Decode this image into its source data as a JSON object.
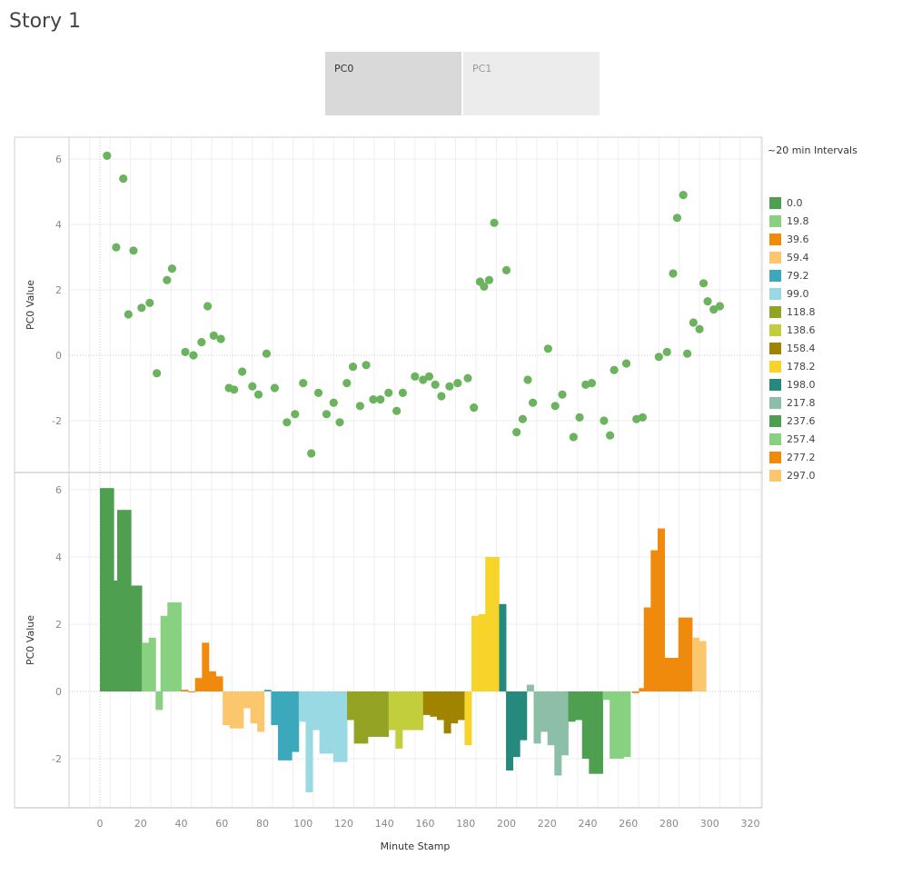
{
  "story": {
    "title": "Story 1"
  },
  "tabs": [
    {
      "label": "PC0",
      "active": true
    },
    {
      "label": "PC1",
      "active": false
    }
  ],
  "legend": {
    "title": "~20 min Intervals",
    "items": [
      {
        "label": "0.0",
        "color": "#4e9f50"
      },
      {
        "label": "19.8",
        "color": "#87d180"
      },
      {
        "label": "39.6",
        "color": "#ef8a0c"
      },
      {
        "label": "59.4",
        "color": "#fcc66d"
      },
      {
        "label": "79.2",
        "color": "#3ca8bc"
      },
      {
        "label": "99.0",
        "color": "#98d9e4"
      },
      {
        "label": "118.8",
        "color": "#94a323"
      },
      {
        "label": "138.6",
        "color": "#c3ce3d"
      },
      {
        "label": "158.4",
        "color": "#a08400"
      },
      {
        "label": "178.2",
        "color": "#f7d42a"
      },
      {
        "label": "198.0",
        "color": "#26897e"
      },
      {
        "label": "217.8",
        "color": "#8dbfa8"
      },
      {
        "label": "237.6",
        "color": "#4e9f50"
      },
      {
        "label": "257.4",
        "color": "#87d180"
      },
      {
        "label": "277.2",
        "color": "#ef8a0c"
      },
      {
        "label": "297.0",
        "color": "#fcc66d"
      }
    ]
  },
  "chart_data": [
    {
      "type": "scatter",
      "xlabel": "Minute Stamp",
      "ylabel": "PC0 Value",
      "xlim": [
        -15,
        323
      ],
      "ylim": [
        -3.5,
        6.6
      ],
      "xticks": [
        0,
        20,
        40,
        60,
        80,
        100,
        120,
        140,
        160,
        180,
        200,
        220,
        240,
        260,
        280,
        300,
        320
      ],
      "yticks": [
        -2,
        0,
        2,
        4,
        6
      ],
      "grid": true,
      "marker_color": "#6bb35e",
      "points": [
        [
          3.5,
          6.1
        ],
        [
          8,
          3.3
        ],
        [
          11.5,
          5.4
        ],
        [
          14,
          1.25
        ],
        [
          16.5,
          3.2
        ],
        [
          20.5,
          1.45
        ],
        [
          24.5,
          1.6
        ],
        [
          28,
          -0.55
        ],
        [
          33,
          2.3
        ],
        [
          35.5,
          2.65
        ],
        [
          42,
          0.1
        ],
        [
          46,
          0.0
        ],
        [
          50,
          0.4
        ],
        [
          53,
          1.5
        ],
        [
          56,
          0.6
        ],
        [
          59.5,
          0.5
        ],
        [
          63.5,
          -1.0
        ],
        [
          66,
          -1.05
        ],
        [
          70,
          -0.5
        ],
        [
          75,
          -0.95
        ],
        [
          78,
          -1.2
        ],
        [
          82,
          0.05
        ],
        [
          86,
          -1.0
        ],
        [
          92,
          -2.05
        ],
        [
          96,
          -1.8
        ],
        [
          100,
          -0.85
        ],
        [
          104,
          -3.0
        ],
        [
          107.5,
          -1.15
        ],
        [
          111.5,
          -1.8
        ],
        [
          115,
          -1.45
        ],
        [
          118,
          -2.05
        ],
        [
          121.5,
          -0.85
        ],
        [
          124.5,
          -0.35
        ],
        [
          128,
          -1.55
        ],
        [
          131,
          -0.3
        ],
        [
          134.5,
          -1.35
        ],
        [
          138,
          -1.35
        ],
        [
          142,
          -1.15
        ],
        [
          146,
          -1.7
        ],
        [
          149,
          -1.15
        ],
        [
          155,
          -0.65
        ],
        [
          159,
          -0.75
        ],
        [
          162,
          -0.65
        ],
        [
          165,
          -0.9
        ],
        [
          168,
          -1.25
        ],
        [
          172,
          -0.95
        ],
        [
          176,
          -0.85
        ],
        [
          181,
          -0.7
        ],
        [
          184,
          -1.6
        ],
        [
          187,
          2.25
        ],
        [
          189,
          2.1
        ],
        [
          191.5,
          2.3
        ],
        [
          194,
          4.05
        ],
        [
          200,
          2.6
        ],
        [
          205,
          -2.35
        ],
        [
          208,
          -1.95
        ],
        [
          210.5,
          -0.75
        ],
        [
          213,
          -1.45
        ],
        [
          220.5,
          0.2
        ],
        [
          224,
          -1.55
        ],
        [
          227.5,
          -1.2
        ],
        [
          233,
          -2.5
        ],
        [
          236,
          -1.9
        ],
        [
          239,
          -0.9
        ],
        [
          242,
          -0.85
        ],
        [
          248,
          -2.0
        ],
        [
          251,
          -2.45
        ],
        [
          253,
          -0.45
        ],
        [
          259,
          -0.25
        ],
        [
          264,
          -1.95
        ],
        [
          267,
          -1.9
        ],
        [
          275,
          -0.05
        ],
        [
          279,
          0.1
        ],
        [
          282,
          2.5
        ],
        [
          284,
          4.2
        ],
        [
          287,
          4.9
        ],
        [
          289,
          0.05
        ],
        [
          292,
          1.0
        ],
        [
          295,
          0.8
        ],
        [
          297,
          2.2
        ],
        [
          299,
          1.65
        ],
        [
          302,
          1.4
        ],
        [
          305,
          1.5
        ]
      ]
    },
    {
      "type": "bar",
      "xlabel": "Minute Stamp",
      "ylabel": "PC0 Value",
      "xlim": [
        -15,
        323
      ],
      "ylim": [
        -3.5,
        6.6
      ],
      "xticks": [
        0,
        20,
        40,
        60,
        80,
        100,
        120,
        140,
        160,
        180,
        200,
        220,
        240,
        260,
        280,
        300,
        320
      ],
      "yticks": [
        -2,
        0,
        2,
        4,
        6
      ],
      "grid": true,
      "bar_width_minutes": 3.4,
      "bars": [
        [
          1.7,
          6.05,
          0
        ],
        [
          5.1,
          6.05,
          0
        ],
        [
          7.9,
          3.3,
          0
        ],
        [
          10.2,
          5.4,
          0
        ],
        [
          13.6,
          5.4,
          0
        ],
        [
          15.5,
          3.15,
          0
        ],
        [
          18.9,
          3.15,
          0
        ],
        [
          22.3,
          1.45,
          1
        ],
        [
          25.7,
          1.6,
          1
        ],
        [
          29.1,
          -0.55,
          1
        ],
        [
          31.5,
          2.25,
          1
        ],
        [
          34.9,
          2.65,
          1
        ],
        [
          38.3,
          2.65,
          1
        ],
        [
          41.7,
          0.05,
          2
        ],
        [
          45.1,
          0.0,
          2
        ],
        [
          48.5,
          0.4,
          2
        ],
        [
          51.9,
          1.45,
          2
        ],
        [
          55.3,
          0.6,
          2
        ],
        [
          58.7,
          0.45,
          2
        ],
        [
          62.1,
          -1.0,
          3
        ],
        [
          65.5,
          -1.1,
          3
        ],
        [
          68.9,
          -1.1,
          3
        ],
        [
          72.3,
          -0.5,
          3
        ],
        [
          75.7,
          -0.95,
          3
        ],
        [
          79.1,
          -1.2,
          3
        ],
        [
          82.5,
          0.05,
          4
        ],
        [
          85.9,
          -1.0,
          4
        ],
        [
          89.3,
          -2.05,
          4
        ],
        [
          92.7,
          -2.05,
          4
        ],
        [
          96.1,
          -1.8,
          4
        ],
        [
          99.5,
          -0.9,
          5
        ],
        [
          102.9,
          -3.0,
          5
        ],
        [
          106.3,
          -1.15,
          5
        ],
        [
          109.7,
          -1.85,
          5
        ],
        [
          113.1,
          -1.85,
          5
        ],
        [
          116.5,
          -2.1,
          5
        ],
        [
          119.9,
          -2.1,
          5
        ],
        [
          123.3,
          -0.85,
          6
        ],
        [
          126.7,
          -1.55,
          6
        ],
        [
          130.1,
          -1.55,
          6
        ],
        [
          133.5,
          -1.35,
          6
        ],
        [
          136.9,
          -1.35,
          6
        ],
        [
          140.3,
          -1.35,
          6
        ],
        [
          143.7,
          -1.15,
          7
        ],
        [
          147.1,
          -1.7,
          7
        ],
        [
          150.5,
          -1.15,
          7
        ],
        [
          153.9,
          -1.15,
          7
        ],
        [
          157.3,
          -1.15,
          7
        ],
        [
          160.7,
          -0.7,
          8
        ],
        [
          164.1,
          -0.75,
          8
        ],
        [
          167.5,
          -0.85,
          8
        ],
        [
          170.9,
          -1.25,
          8
        ],
        [
          174.3,
          -0.95,
          8
        ],
        [
          177.7,
          -0.85,
          8
        ],
        [
          181.1,
          -1.6,
          9
        ],
        [
          184.5,
          2.25,
          9
        ],
        [
          187.9,
          2.3,
          9
        ],
        [
          191.3,
          4.0,
          9
        ],
        [
          194.7,
          4.0,
          9
        ],
        [
          198.1,
          2.6,
          10
        ],
        [
          201.5,
          -2.35,
          10
        ],
        [
          204.9,
          -1.95,
          10
        ],
        [
          208.3,
          -1.45,
          10
        ],
        [
          211.7,
          0.2,
          11
        ],
        [
          215.1,
          -1.55,
          11
        ],
        [
          218.5,
          -1.2,
          11
        ],
        [
          221.9,
          -1.6,
          11
        ],
        [
          225.3,
          -2.5,
          11
        ],
        [
          228.7,
          -1.9,
          11
        ],
        [
          232.1,
          -0.9,
          12
        ],
        [
          235.5,
          -0.85,
          12
        ],
        [
          238.9,
          -2.0,
          12
        ],
        [
          242.3,
          -2.45,
          12
        ],
        [
          245.7,
          -2.45,
          12
        ],
        [
          249.1,
          -0.25,
          13
        ],
        [
          252.5,
          -2.0,
          13
        ],
        [
          255.9,
          -2.0,
          13
        ],
        [
          259.3,
          -1.95,
          13
        ],
        [
          263.5,
          -0.05,
          14
        ],
        [
          266.9,
          0.1,
          14
        ],
        [
          269.3,
          2.5,
          14
        ],
        [
          272.7,
          4.2,
          14
        ],
        [
          276.1,
          4.85,
          14
        ],
        [
          279.5,
          1.0,
          14
        ],
        [
          282.9,
          1.0,
          14
        ],
        [
          286.3,
          2.2,
          14
        ],
        [
          289.7,
          2.2,
          14
        ],
        [
          293.1,
          1.6,
          15
        ],
        [
          296.5,
          1.5,
          15
        ]
      ]
    }
  ]
}
